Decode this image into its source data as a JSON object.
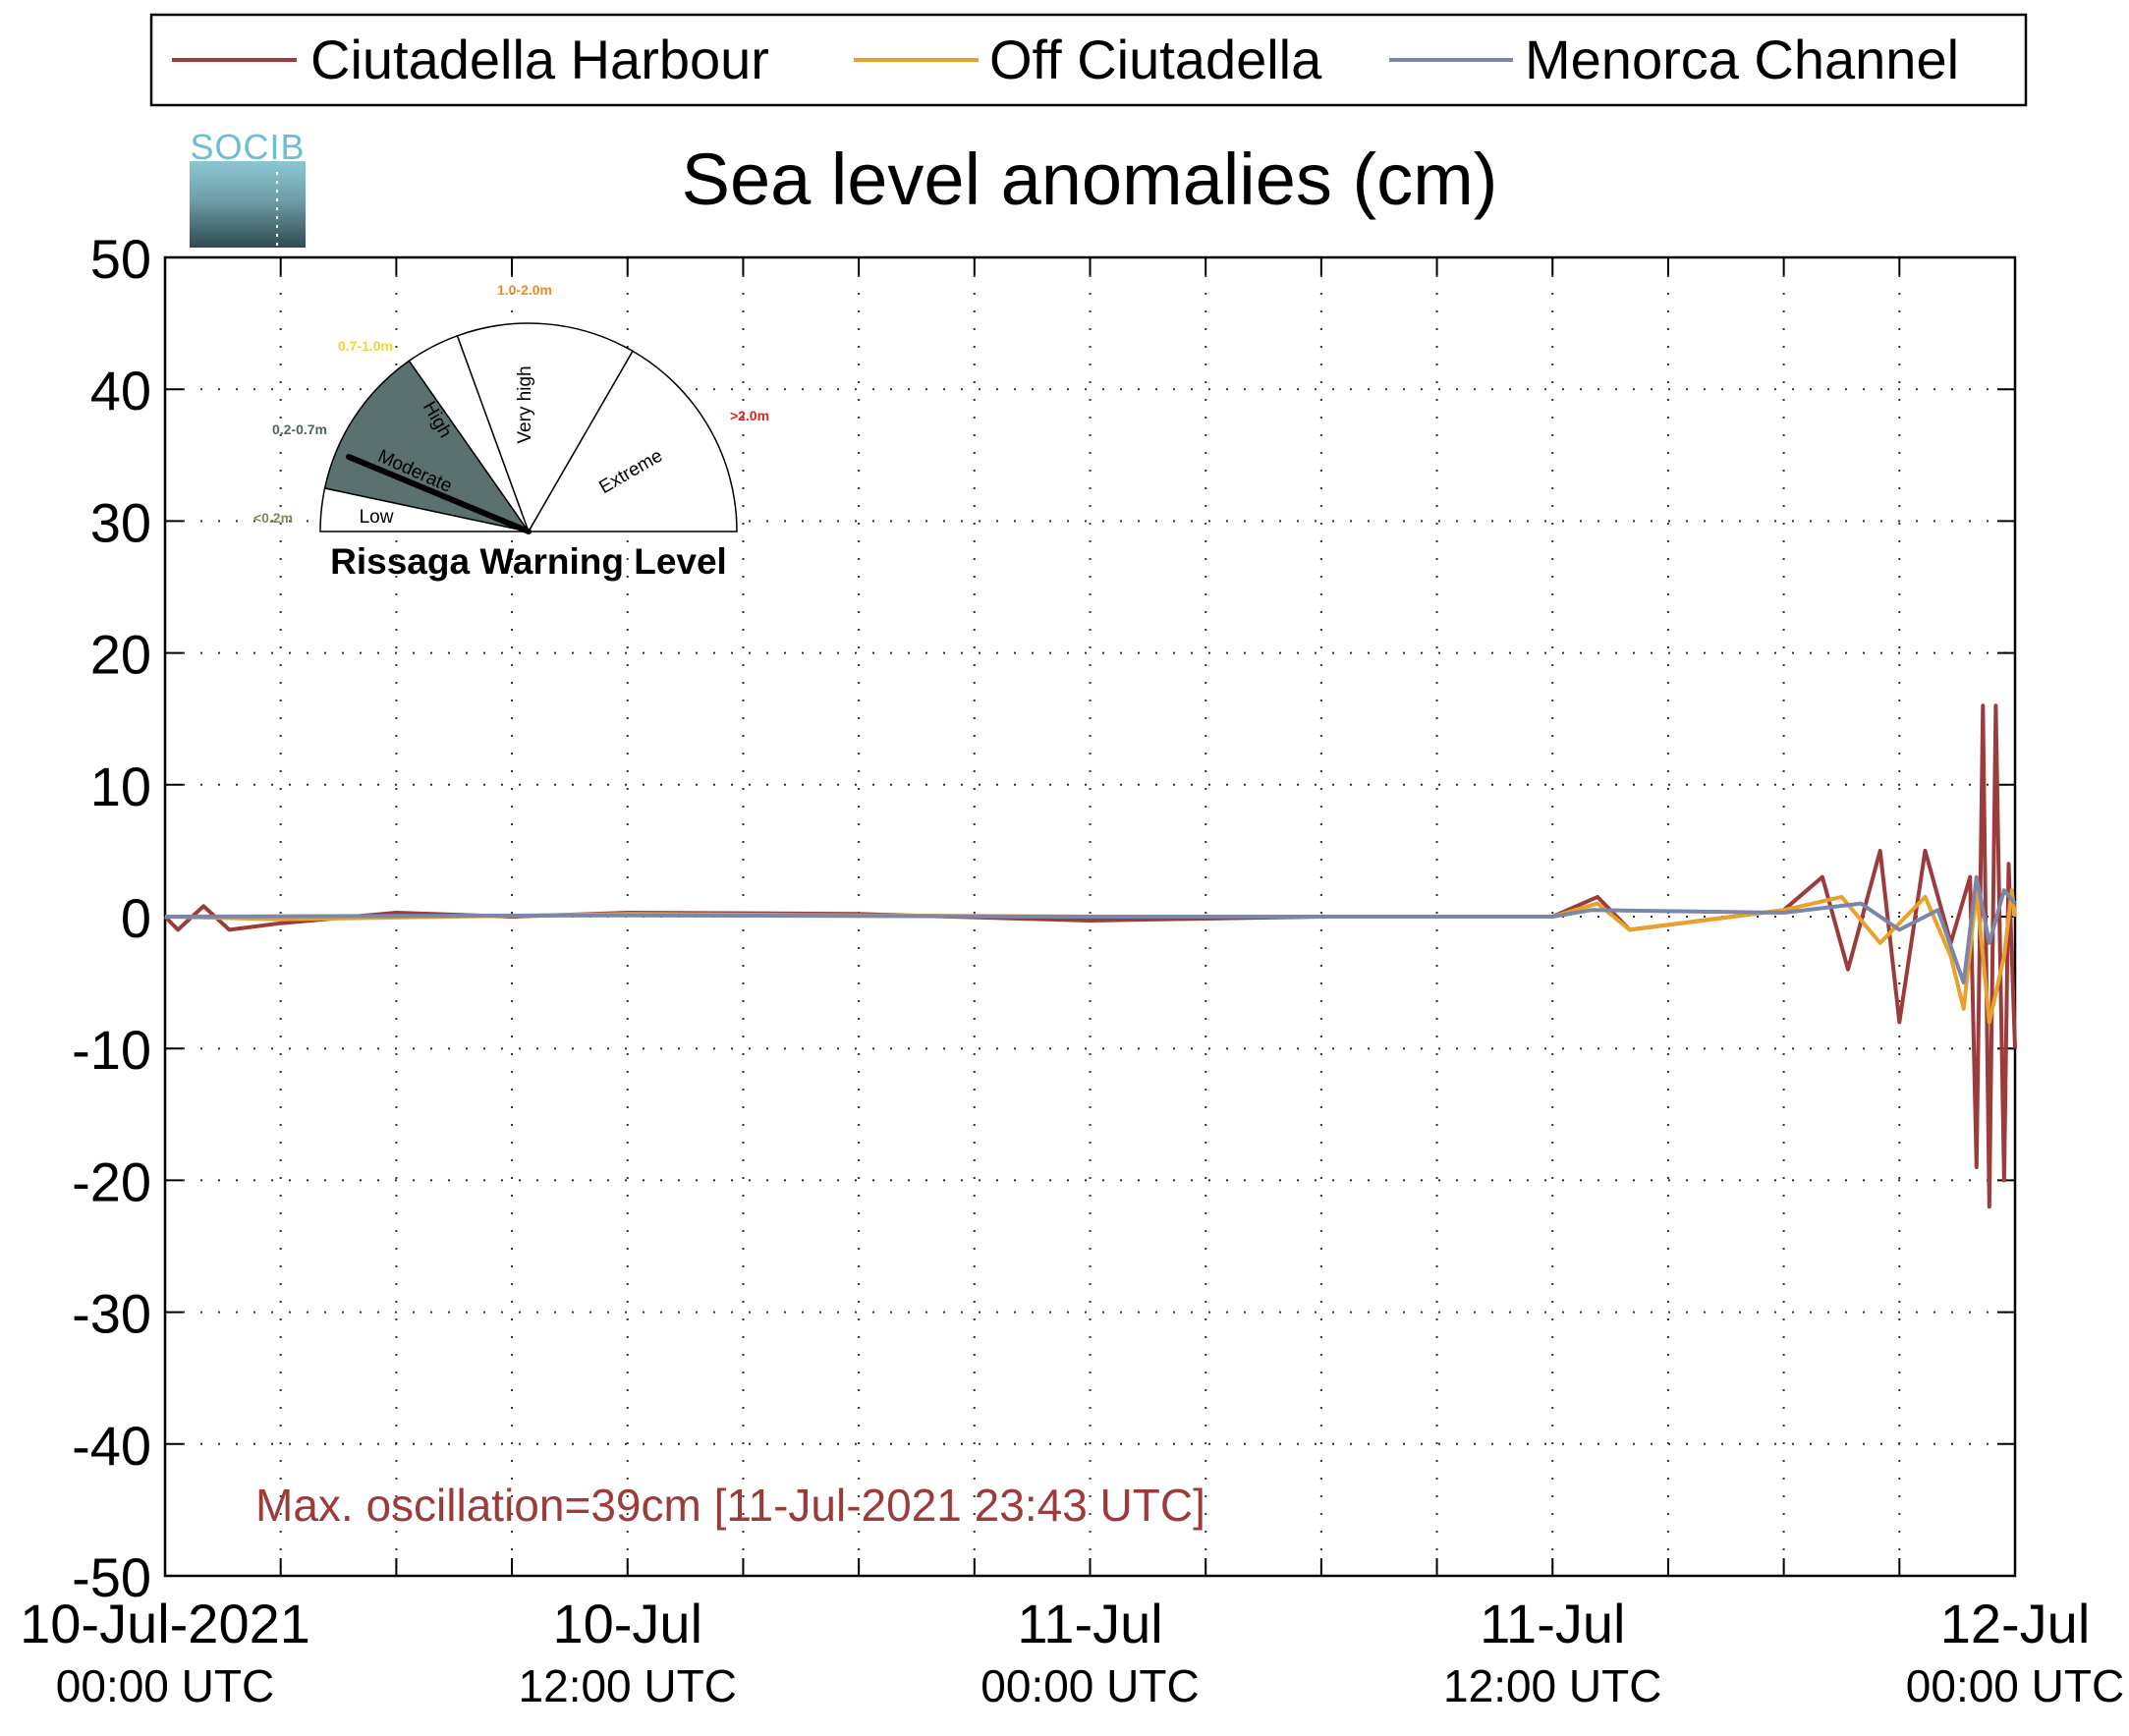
{
  "legend": [
    {
      "label": "Ciutadella Harbour",
      "color": "#9b3b3b"
    },
    {
      "label": "Off Ciutadella",
      "color": "#e8a22a"
    },
    {
      "label": "Menorca Channel",
      "color": "#7b86a8"
    }
  ],
  "logo": {
    "text": "SOCIB"
  },
  "annotation": {
    "text": "Max. oscillation=39cm [11-Jul-2021 23:43 UTC]",
    "color": "#9b3b3b"
  },
  "gauge": {
    "title": "Rissaga Warning Level",
    "current_level": "Moderate",
    "sectors": [
      {
        "name": "Low",
        "range": "<0.2m",
        "range_color": "#7a8a5a"
      },
      {
        "name": "Moderate",
        "range": "0.2-0.7m",
        "range_color": "#4f6464",
        "fill": "#5a7170"
      },
      {
        "name": "High",
        "range": "0.7-1.0m",
        "range_color": "#e8d830"
      },
      {
        "name": "Very high",
        "range": "1.0-2.0m",
        "range_color": "#f08a20"
      },
      {
        "name": "Extreme",
        "range": ">2.0m",
        "range_color": "#e02020"
      }
    ]
  },
  "chart_data": {
    "type": "line",
    "title": "Sea level anomalies (cm)",
    "ylim": [
      -50,
      50
    ],
    "yticks": [
      -50,
      -40,
      -30,
      -20,
      -10,
      0,
      10,
      20,
      30,
      40,
      50
    ],
    "x_range": [
      "2021-07-10 00:00",
      "2021-07-12 00:00"
    ],
    "xtick_labels": [
      {
        "line1": "10-Jul-2021",
        "line2": "00:00 UTC"
      },
      {
        "line1": "10-Jul",
        "line2": "12:00 UTC"
      },
      {
        "line1": "11-Jul",
        "line2": "00:00 UTC"
      },
      {
        "line1": "11-Jul",
        "line2": "12:00 UTC"
      },
      {
        "line1": "12-Jul",
        "line2": "00:00 UTC"
      }
    ],
    "grid": true,
    "legend_position": "top",
    "series": [
      {
        "name": "Ciutadella Harbour",
        "points": [
          [
            "2021-07-10 00:00",
            0
          ],
          [
            "2021-07-10 00:20",
            -1
          ],
          [
            "2021-07-10 01:00",
            0.8
          ],
          [
            "2021-07-10 01:40",
            -1
          ],
          [
            "2021-07-10 03:00",
            -0.5
          ],
          [
            "2021-07-10 06:00",
            0.3
          ],
          [
            "2021-07-10 09:00",
            0
          ],
          [
            "2021-07-10 12:00",
            0.3
          ],
          [
            "2021-07-10 18:00",
            0.2
          ],
          [
            "2021-07-11 00:00",
            -0.3
          ],
          [
            "2021-07-11 06:00",
            0
          ],
          [
            "2021-07-11 12:00",
            0
          ],
          [
            "2021-07-11 13:10",
            1.5
          ],
          [
            "2021-07-11 14:00",
            -1
          ],
          [
            "2021-07-11 18:00",
            0.5
          ],
          [
            "2021-07-11 19:00",
            3
          ],
          [
            "2021-07-11 19:40",
            -4
          ],
          [
            "2021-07-11 20:30",
            5
          ],
          [
            "2021-07-11 21:00",
            -8
          ],
          [
            "2021-07-11 21:40",
            5
          ],
          [
            "2021-07-11 22:20",
            -2
          ],
          [
            "2021-07-11 22:50",
            3
          ],
          [
            "2021-07-11 23:00",
            -19
          ],
          [
            "2021-07-11 23:10",
            16
          ],
          [
            "2021-07-11 23:20",
            -22
          ],
          [
            "2021-07-11 23:30",
            16
          ],
          [
            "2021-07-11 23:43",
            -20
          ],
          [
            "2021-07-11 23:50",
            4
          ],
          [
            "2021-07-12 00:00",
            -10
          ]
        ]
      },
      {
        "name": "Off Ciutadella",
        "points": [
          [
            "2021-07-10 00:00",
            0
          ],
          [
            "2021-07-10 03:00",
            -0.2
          ],
          [
            "2021-07-10 12:00",
            0.2
          ],
          [
            "2021-07-11 00:00",
            0
          ],
          [
            "2021-07-11 12:00",
            0
          ],
          [
            "2021-07-11 13:10",
            1
          ],
          [
            "2021-07-11 14:00",
            -1
          ],
          [
            "2021-07-11 18:00",
            0.5
          ],
          [
            "2021-07-11 19:30",
            1.5
          ],
          [
            "2021-07-11 20:30",
            -2
          ],
          [
            "2021-07-11 21:40",
            1.5
          ],
          [
            "2021-07-11 22:20",
            -3
          ],
          [
            "2021-07-11 22:40",
            -7
          ],
          [
            "2021-07-11 23:00",
            2
          ],
          [
            "2021-07-11 23:20",
            -8
          ],
          [
            "2021-07-11 23:43",
            -3
          ],
          [
            "2021-07-11 23:55",
            2
          ],
          [
            "2021-07-12 00:00",
            0
          ]
        ]
      },
      {
        "name": "Menorca Channel",
        "points": [
          [
            "2021-07-10 00:00",
            0
          ],
          [
            "2021-07-10 12:00",
            0.1
          ],
          [
            "2021-07-11 00:00",
            0
          ],
          [
            "2021-07-11 12:00",
            0
          ],
          [
            "2021-07-11 13:00",
            0.5
          ],
          [
            "2021-07-11 18:00",
            0.3
          ],
          [
            "2021-07-11 20:00",
            1
          ],
          [
            "2021-07-11 21:00",
            -1
          ],
          [
            "2021-07-11 22:00",
            0.5
          ],
          [
            "2021-07-11 22:40",
            -5
          ],
          [
            "2021-07-11 23:00",
            3
          ],
          [
            "2021-07-11 23:20",
            -2
          ],
          [
            "2021-07-11 23:43",
            2
          ],
          [
            "2021-07-12 00:00",
            1
          ]
        ]
      }
    ]
  }
}
